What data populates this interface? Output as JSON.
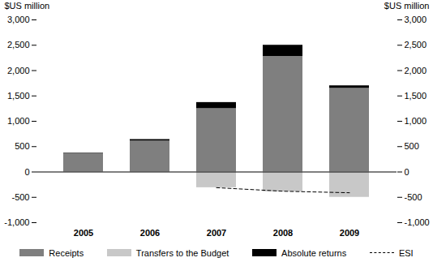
{
  "chart_data": {
    "type": "bar",
    "stacked": true,
    "ylabel": "$US million",
    "categories": [
      "2005",
      "2006",
      "2007",
      "2008",
      "2009"
    ],
    "series": [
      {
        "name": "Receipts",
        "type": "bar",
        "color": "#7f7f7f",
        "values": [
          360,
          610,
          1250,
          2280,
          1650
        ]
      },
      {
        "name": "Transfers to the Budget",
        "type": "bar",
        "color": "#c8c8c8",
        "values": [
          0,
          0,
          -310,
          -390,
          -500
        ]
      },
      {
        "name": "Absolute returns",
        "type": "bar",
        "color": "#000000",
        "values": [
          10,
          30,
          120,
          220,
          50
        ]
      },
      {
        "name": "ESI",
        "type": "line",
        "color": "#000000",
        "line_style": "dashed",
        "values": [
          null,
          null,
          -310,
          -380,
          -410
        ]
      }
    ],
    "ylim": [
      -1000,
      3000
    ],
    "yticks": [
      {
        "value": -1000,
        "label": "-1,000"
      },
      -500,
      0,
      500,
      {
        "value": 1000,
        "label": "1,000"
      },
      {
        "value": 1500,
        "label": "1,500"
      },
      {
        "value": 2000,
        "label": "2,000"
      },
      {
        "value": 2500,
        "label": "2,500"
      },
      {
        "value": 3000,
        "label": "3,000"
      }
    ],
    "legend": "bottom"
  }
}
